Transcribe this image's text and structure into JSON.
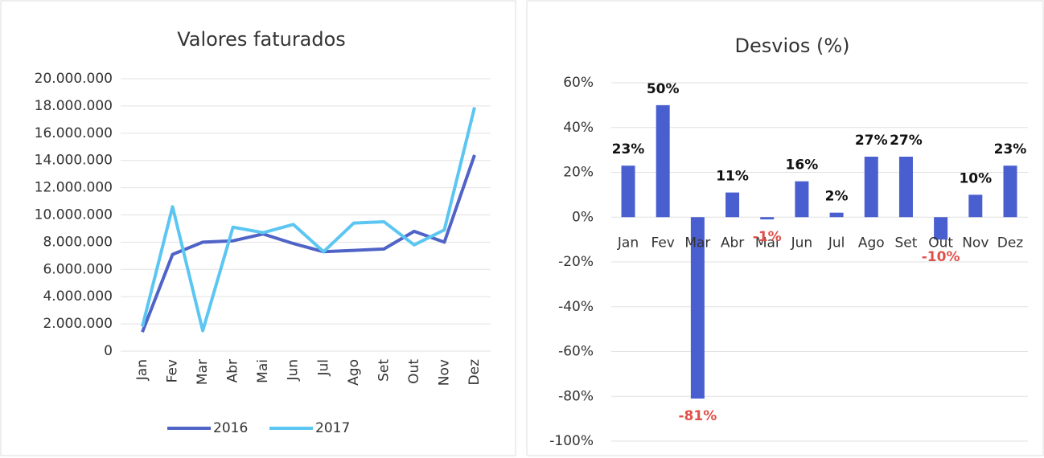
{
  "chart_data": [
    {
      "type": "line",
      "title": "Valores faturados",
      "categories": [
        "Jan",
        "Fev",
        "Mar",
        "Abr",
        "Mai",
        "Jun",
        "Jul",
        "Ago",
        "Set",
        "Out",
        "Nov",
        "Dez"
      ],
      "series": [
        {
          "name": "2016",
          "color": "#5063c6",
          "values": [
            1400000,
            7100000,
            8000000,
            8100000,
            8600000,
            7900000,
            7300000,
            7400000,
            7500000,
            8800000,
            8000000,
            14400000
          ]
        },
        {
          "name": "2017",
          "color": "#5cc6f2",
          "values": [
            1800000,
            10600000,
            1500000,
            9100000,
            8700000,
            9300000,
            7300000,
            9400000,
            9500000,
            7800000,
            8900000,
            17900000
          ]
        }
      ],
      "ylim": [
        0,
        20000000
      ],
      "yticks": [
        0,
        {
          "value": 2000000,
          "label": "2.000.000"
        },
        {
          "value": 4000000,
          "label": "4.000.000"
        },
        {
          "value": 6000000,
          "label": "6.000.000"
        },
        {
          "value": 8000000,
          "label": "8.000.000"
        },
        {
          "value": 10000000,
          "label": "10.000.000"
        },
        {
          "value": 12000000,
          "label": "12.000.000"
        },
        {
          "value": 14000000,
          "label": "14.000.000"
        },
        {
          "value": 16000000,
          "label": "16.000.000"
        },
        {
          "value": 18000000,
          "label": "18.000.000"
        },
        {
          "value": 20000000,
          "label": "20.000.000"
        }
      ],
      "grid": true,
      "legend": "bottom"
    },
    {
      "type": "bar",
      "title": "Desvios (%)",
      "categories": [
        "Jan",
        "Fev",
        "Mar",
        "Abr",
        "Mai",
        "Jun",
        "Jul",
        "Ago",
        "Set",
        "Out",
        "Nov",
        "Dez"
      ],
      "values": [
        23,
        50,
        -81,
        11,
        -1,
        16,
        2,
        27,
        27,
        -10,
        10,
        23
      ],
      "value_labels": [
        "23%",
        "50%",
        "-81%",
        "11%",
        "-1%",
        "16%",
        "2%",
        "27%",
        "27%",
        "-10%",
        "10%",
        "23%"
      ],
      "color": "#4a5fcf",
      "negative_label_color": "#e0504a",
      "ylim": [
        -100,
        60
      ],
      "yticks": [
        {
          "value": -100,
          "label": "-100%"
        },
        {
          "value": -80,
          "label": "-80%"
        },
        {
          "value": -60,
          "label": "-60%"
        },
        {
          "value": -40,
          "label": "-40%"
        },
        {
          "value": -20,
          "label": "-20%"
        },
        {
          "value": 0,
          "label": "0%"
        },
        {
          "value": 20,
          "label": "20%"
        },
        {
          "value": 40,
          "label": "40%"
        },
        {
          "value": 60,
          "label": "60%"
        }
      ],
      "grid": true
    }
  ]
}
